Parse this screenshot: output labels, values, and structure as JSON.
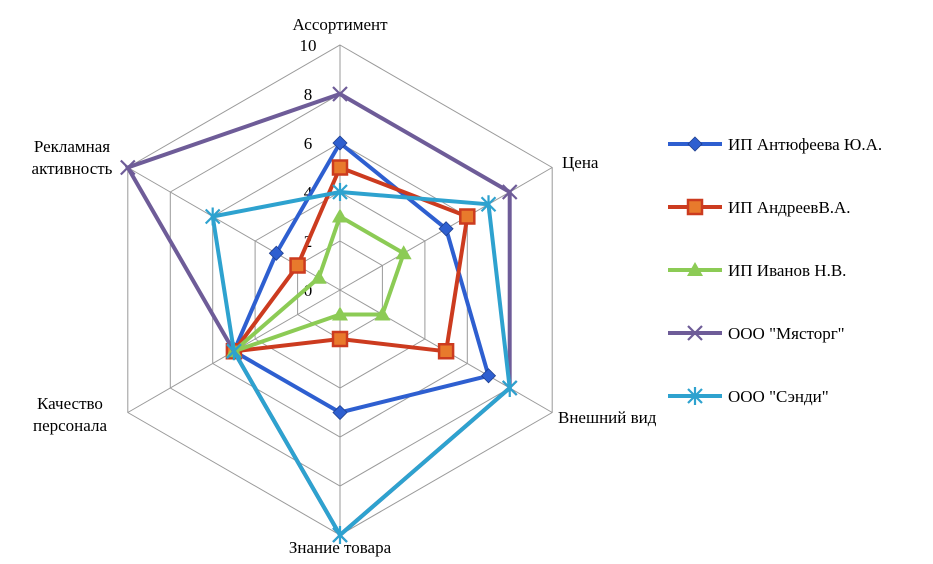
{
  "chart_data": {
    "type": "radar",
    "axes": [
      "Ассортимент",
      "Цена",
      "Внешний вид",
      "Знание товара",
      "Качество персонала",
      "Рекламная активность"
    ],
    "axis_label_lines": [
      [
        "Ассортимент"
      ],
      [
        "Цена"
      ],
      [
        "Внешний вид"
      ],
      [
        "Знание товара"
      ],
      [
        "Качество",
        "персонала"
      ],
      [
        "Рекламная",
        "активность"
      ]
    ],
    "rlim": [
      0,
      10
    ],
    "ticks": [
      "0",
      "2",
      "4",
      "6",
      "8",
      "10"
    ],
    "tick_values": [
      0,
      2,
      4,
      6,
      8,
      10
    ],
    "grid": true,
    "legend_position": "right",
    "series": [
      {
        "name": "ИП Антюфеева Ю.А.",
        "values": [
          6,
          5,
          7,
          5,
          5,
          3
        ],
        "color": "#2E5FD0",
        "marker": "diamond"
      },
      {
        "name": "ИП АндреевВ.А.",
        "values": [
          5,
          6,
          5,
          2,
          5,
          2
        ],
        "color": "#CC3B1F",
        "marker": "square"
      },
      {
        "name": "ИП Иванов Н.В.",
        "values": [
          3,
          3,
          2,
          1,
          5,
          1
        ],
        "color": "#8CCB55",
        "marker": "triangle"
      },
      {
        "name": "ООО \"Мясторг\"",
        "values": [
          8,
          8,
          8,
          10,
          5,
          10
        ],
        "color": "#6E5C98",
        "marker": "x"
      },
      {
        "name": "ООО \"Сэнди\"",
        "values": [
          4,
          7,
          8,
          10,
          5,
          6
        ],
        "color": "#2EA2CF",
        "marker": "asterisk"
      }
    ]
  }
}
